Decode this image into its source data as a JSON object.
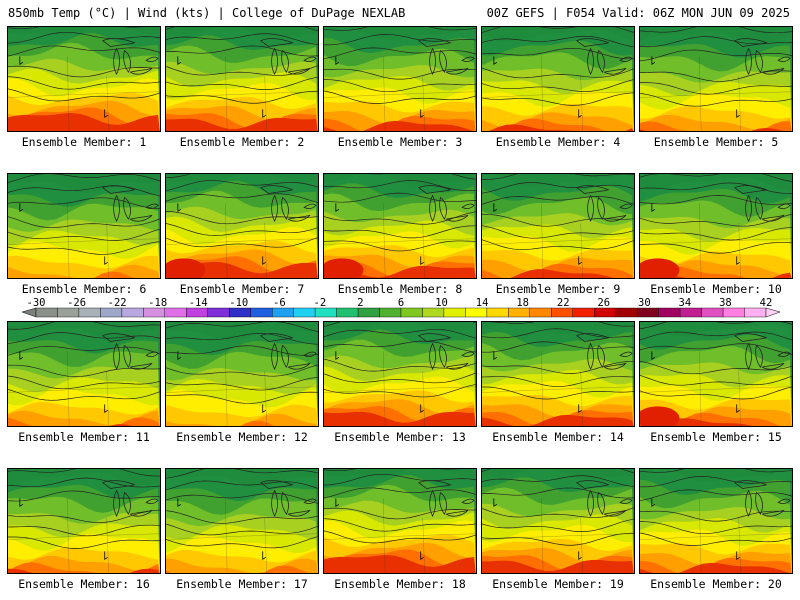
{
  "header": {
    "left": "850mb Temp (°C) | Wind (kts) | College of DuPage NEXLAB",
    "right": "00Z GEFS | F054 Valid: 06Z MON JUN 09 2025"
  },
  "colorbar": {
    "labels": [
      "-30",
      "-26",
      "-22",
      "-18",
      "-14",
      "-10",
      "-6",
      "-2",
      "2",
      "6",
      "10",
      "14",
      "18",
      "22",
      "26",
      "30",
      "34",
      "38",
      "42"
    ],
    "colors": [
      "#8a8f8a",
      "#9aa19a",
      "#a8b0b8",
      "#9ea8c8",
      "#b8a8e0",
      "#d690e0",
      "#e070e8",
      "#c040e0",
      "#8030d8",
      "#3030c8",
      "#2060e0",
      "#20a0f0",
      "#20d0f0",
      "#20e0c0",
      "#20c070",
      "#30a040",
      "#50b030",
      "#80c820",
      "#b0d820",
      "#e0f000",
      "#ffff00",
      "#ffd800",
      "#ffb000",
      "#ff8800",
      "#ff5000",
      "#f02000",
      "#d00000",
      "#a00000",
      "#800020",
      "#a00060",
      "#c02090",
      "#e050c0",
      "#ff80e0",
      "#ffb0f0"
    ]
  },
  "panels": [
    {
      "label": "Ensemble Member: 1"
    },
    {
      "label": "Ensemble Member: 2"
    },
    {
      "label": "Ensemble Member: 3"
    },
    {
      "label": "Ensemble Member: 4"
    },
    {
      "label": "Ensemble Member: 5"
    },
    {
      "label": "Ensemble Member: 6"
    },
    {
      "label": "Ensemble Member: 7"
    },
    {
      "label": "Ensemble Member: 8"
    },
    {
      "label": "Ensemble Member: 9"
    },
    {
      "label": "Ensemble Member: 10"
    },
    {
      "label": "Ensemble Member: 11"
    },
    {
      "label": "Ensemble Member: 12"
    },
    {
      "label": "Ensemble Member: 13"
    },
    {
      "label": "Ensemble Member: 14"
    },
    {
      "label": "Ensemble Member: 15"
    },
    {
      "label": "Ensemble Member: 16"
    },
    {
      "label": "Ensemble Member: 17"
    },
    {
      "label": "Ensemble Member: 18"
    },
    {
      "label": "Ensemble Member: 19"
    },
    {
      "label": "Ensemble Member: 20"
    }
  ]
}
